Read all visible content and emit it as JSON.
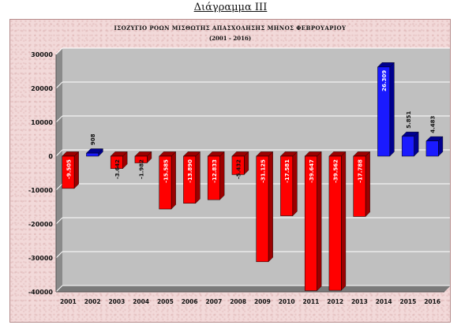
{
  "heading": "Διάγραμμα ΙΙΙ",
  "chart_data": {
    "type": "bar",
    "title": "ΙΣΟΖΥΓΙΟ ΡΟΩΝ ΜΙΣΘΩΤΗΣ ΑΠΑΣΧΟΛΗΣΗΣ ΜΗΝΟΣ ΦΕΒΡΟΥΑΡΙΟΥ",
    "subtitle": "(2001 - 2016)",
    "categories": [
      "2001",
      "2002",
      "2003",
      "2004",
      "2005",
      "2006",
      "2007",
      "2008",
      "2009",
      "2010",
      "2011",
      "2012",
      "2013",
      "2014",
      "2015",
      "2016"
    ],
    "values": [
      -9505,
      908,
      -3642,
      -1982,
      -15585,
      -13890,
      -12833,
      -5432,
      -31125,
      -17581,
      -39647,
      -39562,
      -17788,
      26309,
      5851,
      4483
    ],
    "value_labels": [
      "-9.505",
      "908",
      "-3.642",
      "-1.982",
      "-15.585",
      "-13.890",
      "-12.833",
      "-5.432",
      "-31.125",
      "-17.581",
      "-39.647",
      "-39.562",
      "-17.788",
      "26.309",
      "5.851",
      "4.483"
    ],
    "ylim": [
      -40000,
      30000
    ],
    "yticks": [
      30000,
      20000,
      10000,
      0,
      -10000,
      -20000,
      -30000,
      -40000
    ],
    "ytick_labels": [
      "30000",
      "20000",
      "10000",
      "0",
      "-10000",
      "-20000",
      "-30000",
      "-40000"
    ],
    "grid": true,
    "colors": {
      "negative": "#ff0000",
      "negative_side": "#9c0000",
      "positive": "#1a1aff",
      "positive_side": "#00008f",
      "plot_area": "#c0c0c0",
      "plot_wall": "#9a9a9a",
      "gridline": "#ffffff"
    }
  }
}
